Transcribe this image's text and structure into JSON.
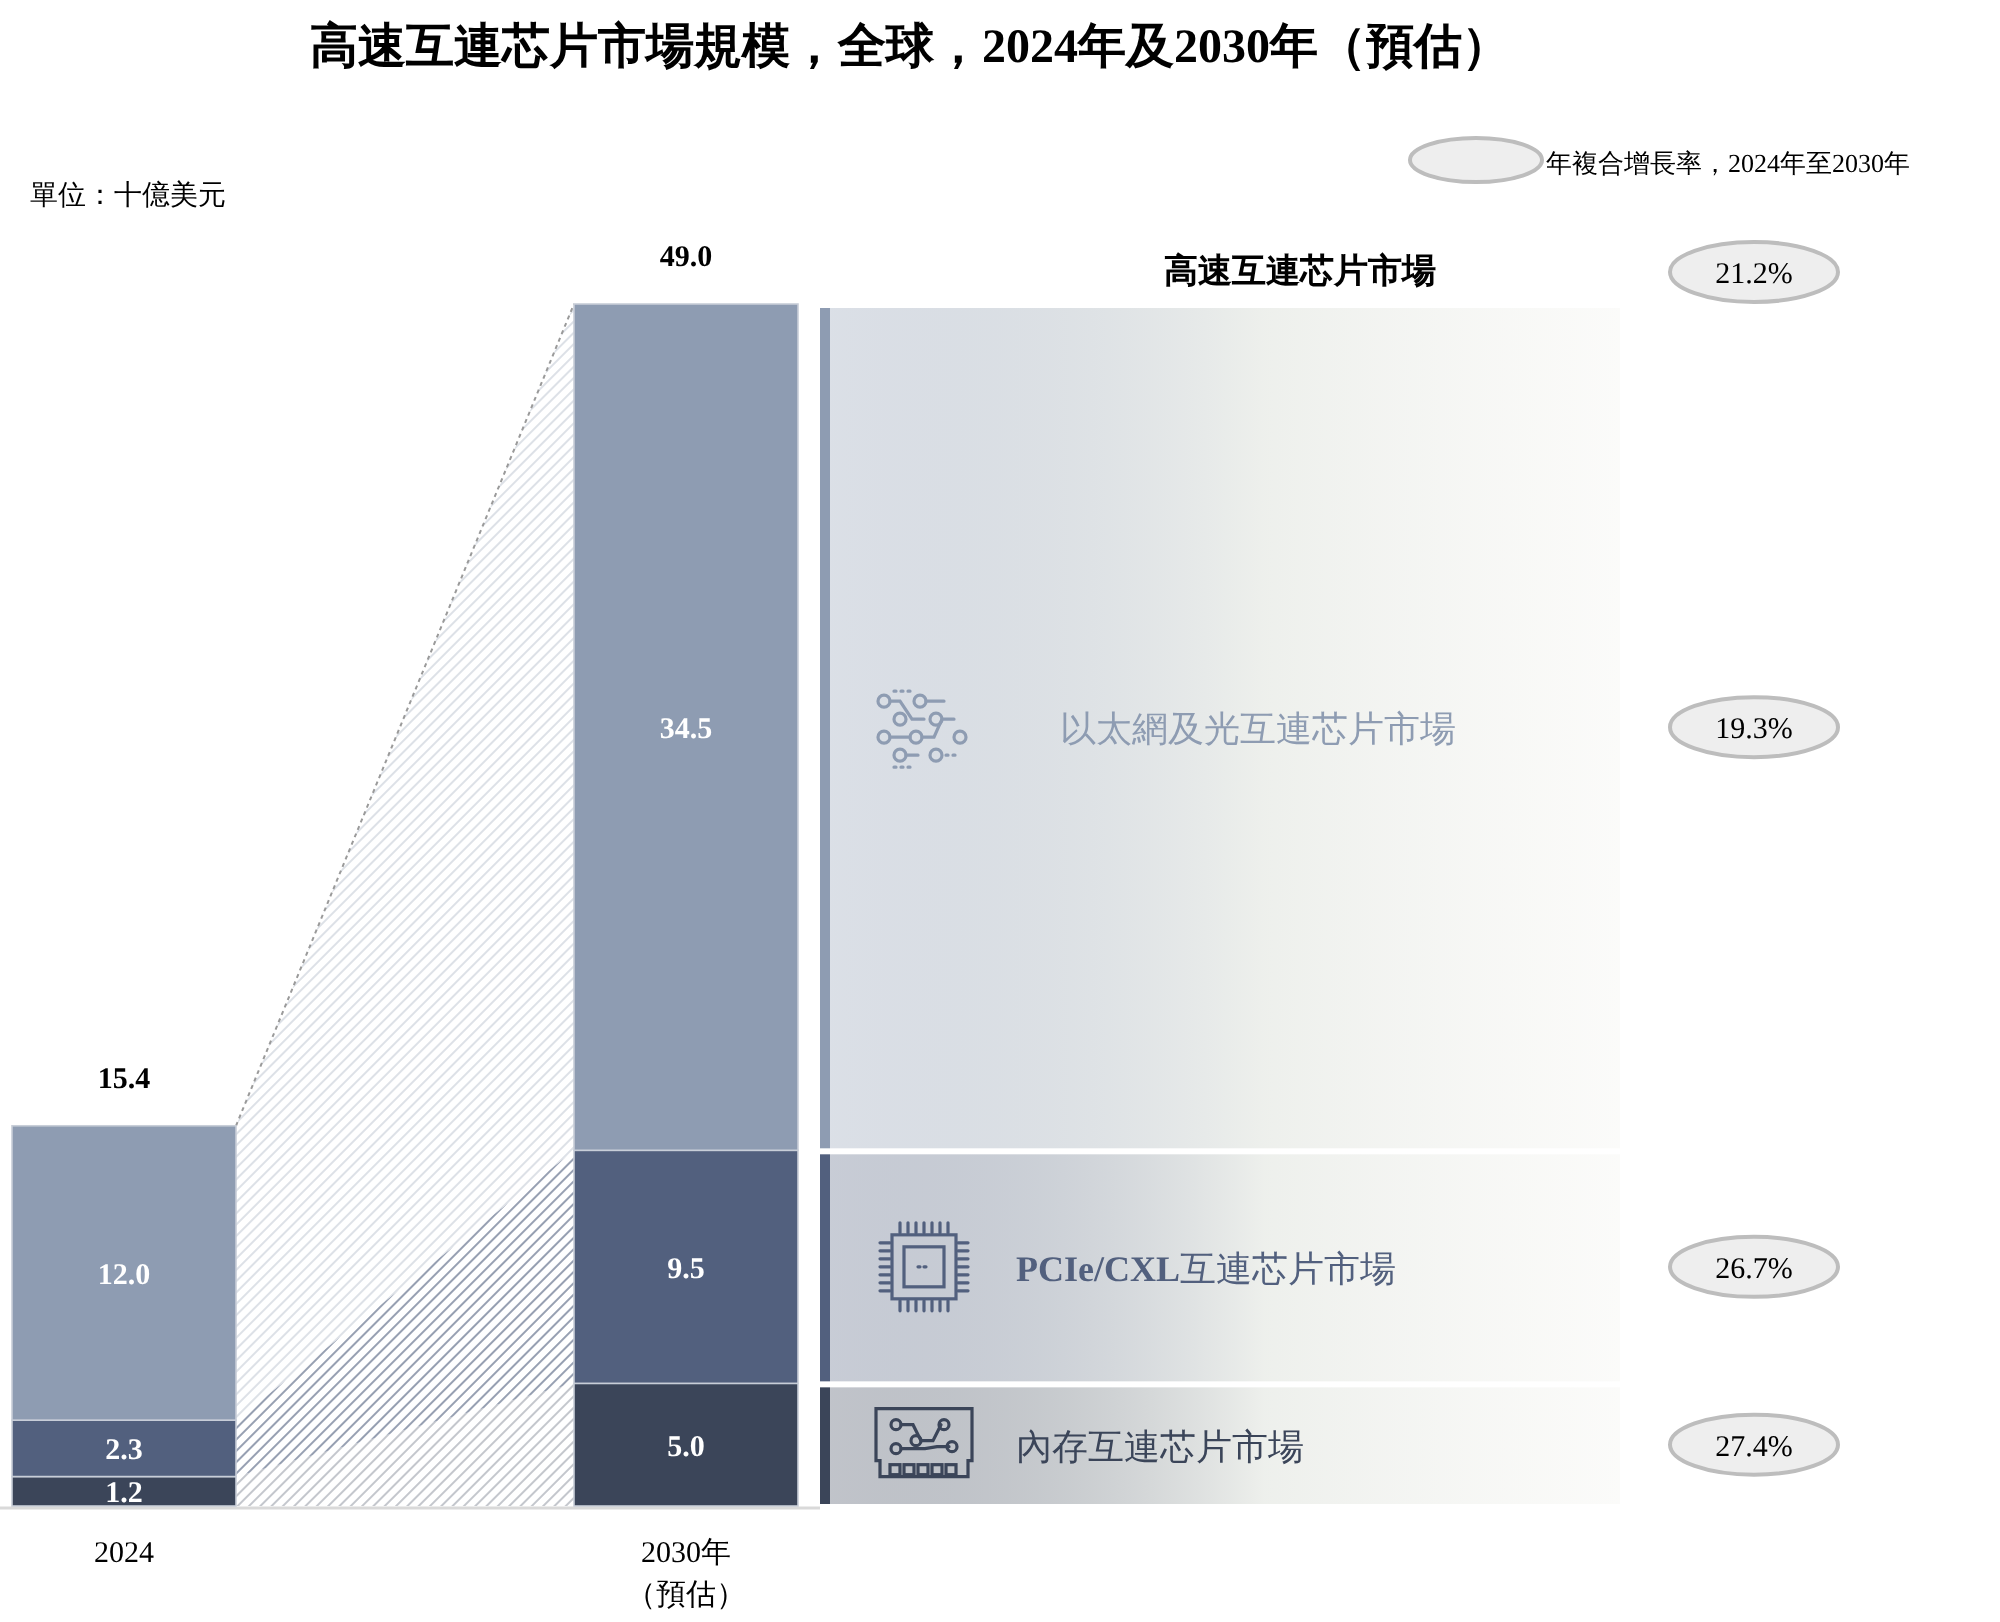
{
  "chart_data": {
    "type": "bar",
    "stacked": true,
    "legend": "right",
    "title": "高速互連芯片市場規模，全球，2024年及2030年（預估）",
    "categories": [
      "2024",
      "2030年（預估）"
    ],
    "series": [
      {
        "name": "內存互連芯片市場",
        "color": "#3b4559",
        "values": [
          1.2,
          5.0
        ],
        "value_labels": [
          "1.2",
          "5.0"
        ]
      },
      {
        "name": "PCIe/CXL互連芯片市場",
        "color": "#52607e",
        "values": [
          2.3,
          9.5
        ],
        "value_labels": [
          "2.3",
          "9.5"
        ]
      },
      {
        "name": "以太網及光互連芯片市場",
        "color": "#8e9cb2",
        "values": [
          12.0,
          34.5
        ],
        "value_labels": [
          "12.0",
          "34.5"
        ]
      }
    ],
    "totals": [
      "15.4",
      "49.0"
    ],
    "annotations": [
      "單位：十億美元",
      "年複合增長率，2024年至2030年",
      "高速互連芯片市場",
      "21.2%",
      "27.4%",
      "26.7%",
      "19.3%"
    ]
  }
}
